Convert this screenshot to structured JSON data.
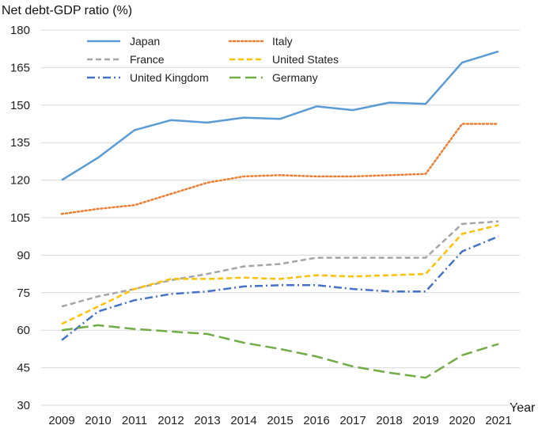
{
  "chart_data": {
    "type": "line",
    "title": "",
    "ylabel": "Net debt-GDP ratio (%)",
    "xlabel": "Year",
    "ylim": [
      30,
      180
    ],
    "yticks": [
      30,
      45,
      60,
      75,
      90,
      105,
      120,
      135,
      150,
      165,
      180
    ],
    "x": [
      "2009",
      "2010",
      "2011",
      "2012",
      "2013",
      "2014",
      "2015",
      "2016",
      "2017",
      "2018",
      "2019",
      "2020",
      "2021"
    ],
    "grid": "horizontal",
    "legend_position": "top-inside",
    "series": [
      {
        "name": "Japan",
        "color": "#5B9BD5",
        "style": "solid",
        "values": [
          120,
          129,
          140,
          144,
          143,
          145,
          144.5,
          149.5,
          148,
          151,
          150.5,
          167,
          171.5
        ]
      },
      {
        "name": "Italy",
        "color": "#ED7D31",
        "style": "dotted",
        "values": [
          106.5,
          108.5,
          110,
          114.5,
          119,
          121.5,
          122,
          121.5,
          121.5,
          122,
          122.5,
          142.5,
          142.5
        ]
      },
      {
        "name": "France",
        "color": "#A5A5A5",
        "style": "dashed",
        "values": [
          69.5,
          73.5,
          76.5,
          80,
          82.5,
          85.5,
          86.5,
          89,
          89,
          89,
          89,
          102.5,
          103.5
        ]
      },
      {
        "name": "United States",
        "color": "#FFC000",
        "style": "dashed",
        "values": [
          62.5,
          69.5,
          76.5,
          80.5,
          80.5,
          81,
          80.5,
          82,
          81.5,
          82,
          82.5,
          98.5,
          102
        ]
      },
      {
        "name": "United Kingdom",
        "color": "#4472C4",
        "style": "dashdot",
        "values": [
          56,
          67.5,
          72,
          74.5,
          75.5,
          77.5,
          78,
          78,
          76.5,
          75.5,
          75.5,
          91.5,
          97.5
        ]
      },
      {
        "name": "Germany",
        "color": "#70AD47",
        "style": "longdash",
        "values": [
          60,
          62,
          60.5,
          59.5,
          58.5,
          55,
          52.5,
          49.5,
          45.5,
          43,
          41,
          50,
          54.5
        ]
      }
    ]
  }
}
